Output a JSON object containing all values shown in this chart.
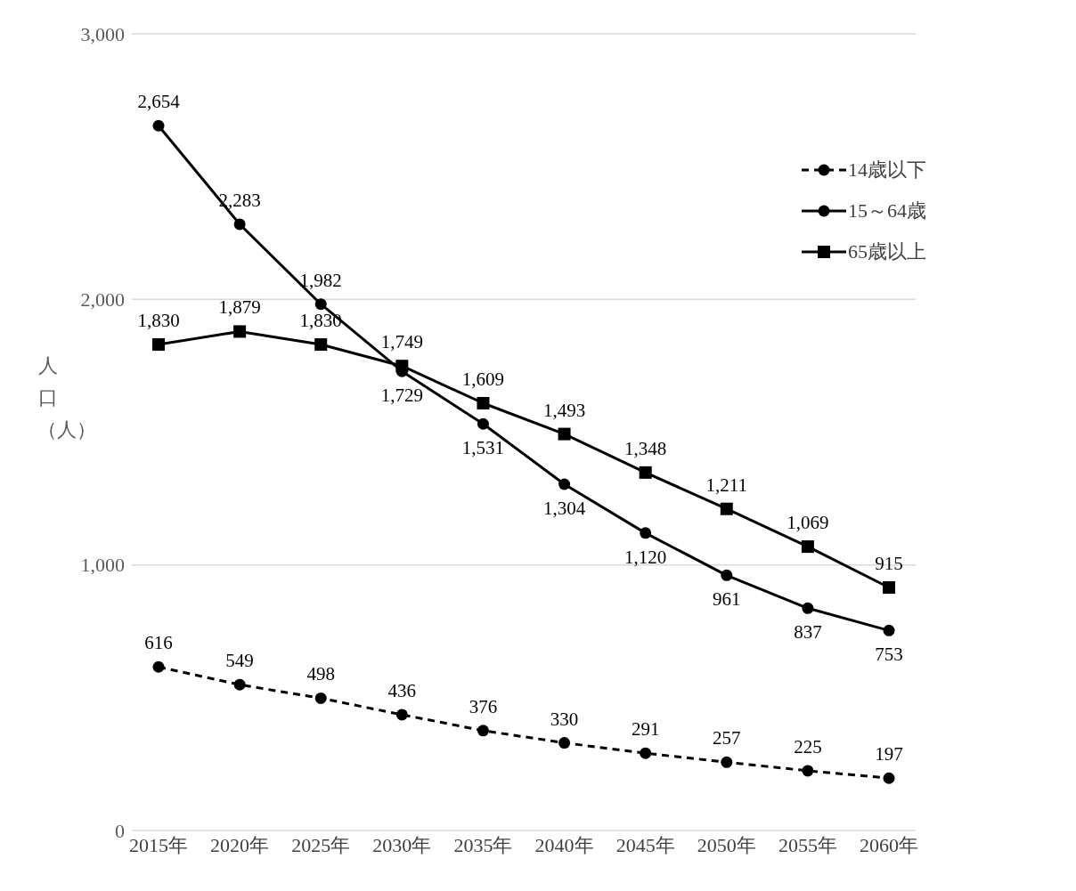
{
  "chart_data": {
    "type": "line",
    "ylabel": "人口（人）",
    "categories": [
      "2015年",
      "2020年",
      "2025年",
      "2030年",
      "2035年",
      "2040年",
      "2045年",
      "2050年",
      "2055年",
      "2060年"
    ],
    "series": [
      {
        "name": "14歳以下",
        "color": "#000000",
        "marker": "circle",
        "line_style": "dashed",
        "values": [
          616,
          549,
          498,
          436,
          376,
          330,
          291,
          257,
          225,
          197
        ],
        "value_labels": [
          "616",
          "549",
          "498",
          "436",
          "376",
          "330",
          "291",
          "257",
          "225",
          "197"
        ]
      },
      {
        "name": "15～64歳",
        "color": "#000000",
        "marker": "circle",
        "line_style": "solid",
        "values": [
          2654,
          2283,
          1982,
          1729,
          1531,
          1304,
          1120,
          961,
          837,
          753
        ],
        "value_labels": [
          "2,654",
          "2,283",
          "1,982",
          "1,729",
          "1,531",
          "1,304",
          "1,120",
          "961",
          "837",
          "753"
        ]
      },
      {
        "name": "65歳以上",
        "color": "#000000",
        "marker": "square",
        "line_style": "solid",
        "values": [
          1830,
          1879,
          1830,
          1749,
          1609,
          1493,
          1348,
          1211,
          1069,
          915
        ],
        "value_labels": [
          "1,830",
          "1,879",
          "1,830",
          "1,749",
          "1,609",
          "1,493",
          "1,348",
          "1,211",
          "1,069",
          "915"
        ]
      }
    ],
    "ylim": [
      0,
      3000
    ],
    "yticks": [
      0,
      {
        "value": 1000,
        "label": "1,000"
      },
      {
        "value": 2000,
        "label": "2,000"
      },
      {
        "value": 3000,
        "label": "3,000"
      }
    ],
    "grid": "y",
    "legend": "top right"
  }
}
